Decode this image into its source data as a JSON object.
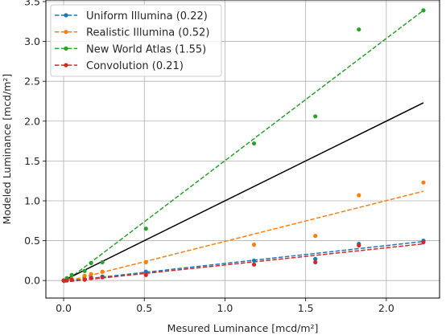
{
  "chart_data": {
    "type": "scatter",
    "xlabel": "Mesured Luminance [mcd/m²]",
    "ylabel": "Modeled Luminance [mcd/m²]",
    "xlim": [
      -0.11,
      2.33
    ],
    "ylim": [
      -0.22,
      3.52
    ],
    "xticks": [
      0.0,
      0.5,
      1.0,
      1.5,
      2.0
    ],
    "xtick_labels": [
      "0.0",
      "0.5",
      "1.0",
      "1.5",
      "2.0"
    ],
    "yticks": [
      0.0,
      0.5,
      1.0,
      1.5,
      2.0,
      2.5,
      3.0,
      3.5
    ],
    "ytick_labels": [
      "0.0",
      "0.5",
      "1.0",
      "1.5",
      "2.0",
      "2.5",
      "3.0",
      "3.5"
    ],
    "grid": true,
    "legend_position": "top-left",
    "x": [
      0.0,
      0.02,
      0.05,
      0.13,
      0.17,
      0.24,
      0.51,
      1.18,
      1.56,
      1.83,
      2.23
    ],
    "identity_line": {
      "x": [
        0.0,
        2.23
      ],
      "y": [
        0.0,
        2.23
      ],
      "color": "#000000"
    },
    "series": [
      {
        "name": "Uniform Illumina (0.22)",
        "color": "#1f77b4",
        "y": [
          0.0,
          0.01,
          0.01,
          0.02,
          0.04,
          0.05,
          0.11,
          0.25,
          0.27,
          0.46,
          0.5
        ],
        "fit": {
          "x": [
            0.0,
            2.23
          ],
          "y": [
            -0.01,
            0.49
          ]
        }
      },
      {
        "name": "Realistic Illumina (0.52)",
        "color": "#ff7f0e",
        "y": [
          0.0,
          0.01,
          0.02,
          0.06,
          0.08,
          0.11,
          0.23,
          0.45,
          0.56,
          1.07,
          1.23
        ],
        "fit": {
          "x": [
            0.0,
            2.23
          ],
          "y": [
            -0.02,
            1.12
          ]
        }
      },
      {
        "name": "New World Atlas (1.55)",
        "color": "#2ca02c",
        "y": [
          0.0,
          0.03,
          0.07,
          0.12,
          0.22,
          0.23,
          0.65,
          1.72,
          2.06,
          3.15,
          3.39
        ],
        "fit": {
          "x": [
            0.0,
            2.23
          ],
          "y": [
            -0.03,
            3.39
          ]
        }
      },
      {
        "name": "Convolution (0.21)",
        "color": "#d62728",
        "y": [
          0.0,
          0.0,
          0.01,
          0.01,
          0.03,
          0.04,
          0.07,
          0.2,
          0.23,
          0.44,
          0.48
        ],
        "fit": {
          "x": [
            0.0,
            2.23
          ],
          "y": [
            -0.02,
            0.46
          ]
        }
      }
    ]
  }
}
